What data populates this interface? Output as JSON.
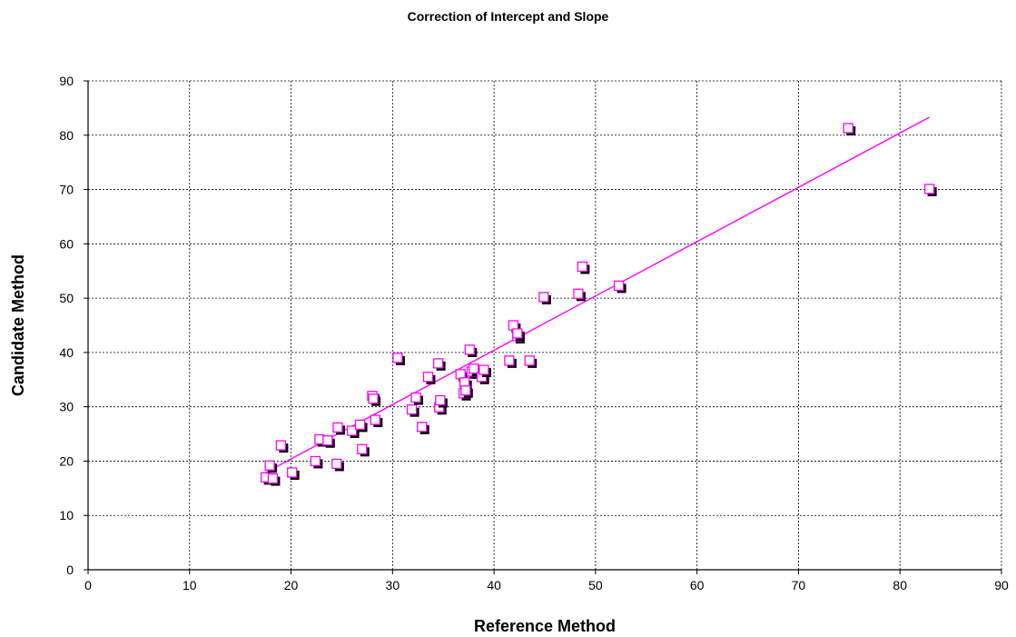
{
  "chart_data": {
    "type": "scatter",
    "title": "Correction of Intercept and Slope",
    "xlabel": "Reference Method",
    "ylabel": "Candidate Method",
    "xlim": [
      0,
      90
    ],
    "ylim": [
      0,
      90
    ],
    "xticks": [
      "0",
      "10",
      "20",
      "30",
      "40",
      "50",
      "60",
      "70",
      "80",
      "90"
    ],
    "yticks": [
      "0",
      "10",
      "20",
      "30",
      "40",
      "50",
      "60",
      "70",
      "80",
      "90"
    ],
    "grid": true,
    "colors": {
      "marker": "#ff00ff",
      "fit_line": "#ff00ff",
      "shadow": "#000000",
      "grid": "#000000"
    },
    "points": [
      [
        17.5,
        17.0
      ],
      [
        17.9,
        19.2
      ],
      [
        18.2,
        16.8
      ],
      [
        19.0,
        22.9
      ],
      [
        20.1,
        17.9
      ],
      [
        22.4,
        20.0
      ],
      [
        22.8,
        24.0
      ],
      [
        23.6,
        23.8
      ],
      [
        24.5,
        19.5
      ],
      [
        24.6,
        26.2
      ],
      [
        26.0,
        25.6
      ],
      [
        26.8,
        26.7
      ],
      [
        27.0,
        22.2
      ],
      [
        28.0,
        32.0
      ],
      [
        28.1,
        31.5
      ],
      [
        28.3,
        27.6
      ],
      [
        30.5,
        39.0
      ],
      [
        31.9,
        29.5
      ],
      [
        32.3,
        31.7
      ],
      [
        32.9,
        26.3
      ],
      [
        33.5,
        35.5
      ],
      [
        34.5,
        38.0
      ],
      [
        34.6,
        29.9
      ],
      [
        34.7,
        31.2
      ],
      [
        36.7,
        36.0
      ],
      [
        37.0,
        32.5
      ],
      [
        37.1,
        34.5
      ],
      [
        37.2,
        33.0
      ],
      [
        37.6,
        40.5
      ],
      [
        37.8,
        36.5
      ],
      [
        38.0,
        37.0
      ],
      [
        38.8,
        35.5
      ],
      [
        39.0,
        36.8
      ],
      [
        41.5,
        38.5
      ],
      [
        41.9,
        45.0
      ],
      [
        42.3,
        43.0
      ],
      [
        42.3,
        43.5
      ],
      [
        43.5,
        38.5
      ],
      [
        44.9,
        50.2
      ],
      [
        48.3,
        50.8
      ],
      [
        48.7,
        55.8
      ],
      [
        52.3,
        52.3
      ],
      [
        74.9,
        81.3
      ],
      [
        82.9,
        70.1
      ]
    ],
    "fit_line": {
      "x": [
        17.5,
        82.9
      ],
      "y": [
        17.9,
        83.3
      ]
    }
  }
}
